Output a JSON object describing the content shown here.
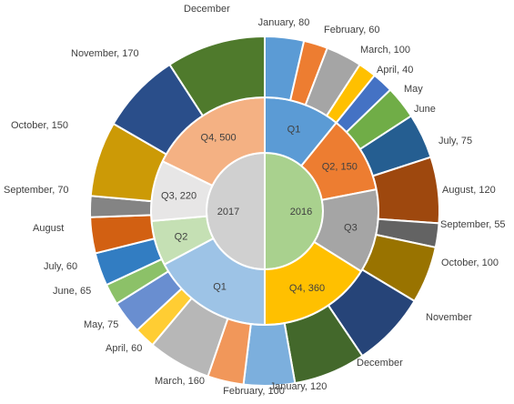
{
  "chart_data": {
    "type": "sunburst",
    "title": "",
    "rings": [
      {
        "name": "year",
        "slices": [
          {
            "label": "2016",
            "value": 1050,
            "color": "#a9d18e",
            "label_text": "2016",
            "a0": 0,
            "a1": 180
          },
          {
            "label": "2017",
            "value": 1050,
            "color": "#d0d0d0",
            "label_text": "2017",
            "a0": 180,
            "a1": 360
          }
        ]
      },
      {
        "name": "quarter",
        "slices": [
          {
            "label": "Q1",
            "value": 180,
            "color": "#5b9bd5",
            "label_text": "Q1",
            "a0": 0,
            "a1": 39
          },
          {
            "label": "Q2",
            "value": 150,
            "color": "#ed7d31",
            "label_text": "Q2, 150",
            "a0": 39,
            "a1": 79
          },
          {
            "label": "Q3",
            "value": 250,
            "color": "#a5a5a5",
            "label_text": "Q3",
            "a0": 79,
            "a1": 122
          },
          {
            "label": "Q4",
            "value": 360,
            "color": "#ffc000",
            "label_text": "Q4, 360",
            "a0": 122,
            "a1": 180
          },
          {
            "label": "Q1",
            "value": 380,
            "color": "#9dc3e6",
            "label_text": "Q1",
            "a0": 180,
            "a1": 242
          },
          {
            "label": "Q2",
            "value": 200,
            "color": "#c5e0b4",
            "label_text": "Q2",
            "a0": 242,
            "a1": 265
          },
          {
            "label": "Q3",
            "value": 220,
            "color": "#e7e6e6",
            "label_text": "Q3, 220",
            "a0": 265,
            "a1": 296
          },
          {
            "label": "Q4",
            "value": 500,
            "color": "#f4b183",
            "label_text": "Q4, 500",
            "a0": 296,
            "a1": 360
          }
        ]
      },
      {
        "name": "month",
        "slices": [
          {
            "label": "January",
            "value": 80,
            "color": "#5b9bd5",
            "label_text": "January, 80",
            "a0": 0,
            "a1": 13
          },
          {
            "label": "February",
            "value": 60,
            "color": "#ed7d31",
            "label_text": "February, 60",
            "a0": 13,
            "a1": 21
          },
          {
            "label": "March",
            "value": 100,
            "color": "#a5a5a5",
            "label_text": "March, 100",
            "a0": 21,
            "a1": 33
          },
          {
            "label": "April",
            "value": 40,
            "color": "#ffc000",
            "label_text": "April, 40",
            "a0": 33,
            "a1": 39
          },
          {
            "label": "May",
            "value": null,
            "color": "#4472c4",
            "label_text": "May",
            "a0": 39,
            "a1": 46
          },
          {
            "label": "June",
            "value": null,
            "color": "#70ad47",
            "label_text": "June",
            "a0": 46,
            "a1": 57
          },
          {
            "label": "July",
            "value": 75,
            "color": "#255e91",
            "label_text": "July, 75",
            "a0": 57,
            "a1": 72
          },
          {
            "label": "August",
            "value": 120,
            "color": "#9e480e",
            "label_text": "August, 120",
            "a0": 72,
            "a1": 94
          },
          {
            "label": "September",
            "value": 55,
            "color": "#636363",
            "label_text": "September, 55",
            "a0": 94,
            "a1": 102
          },
          {
            "label": "October",
            "value": 100,
            "color": "#997300",
            "label_text": "October, 100",
            "a0": 102,
            "a1": 121
          },
          {
            "label": "November",
            "value": null,
            "color": "#264478",
            "label_text": "November",
            "a0": 121,
            "a1": 146
          },
          {
            "label": "December",
            "value": null,
            "color": "#43682b",
            "label_text": "December",
            "a0": 146,
            "a1": 170
          },
          {
            "label": "January",
            "value": 120,
            "color": "#7cafdd",
            "label_text": "January, 120",
            "a0": 170,
            "a1": 187
          },
          {
            "label": "February",
            "value": 100,
            "color": "#f1975a",
            "label_text": "February, 100",
            "a0": 187,
            "a1": 199
          },
          {
            "label": "March",
            "value": 160,
            "color": "#b7b7b7",
            "label_text": "March, 160",
            "a0": 199,
            "a1": 220
          },
          {
            "label": "April",
            "value": 60,
            "color": "#ffcd33",
            "label_text": "April, 60",
            "a0": 220,
            "a1": 227
          },
          {
            "label": "May",
            "value": 75,
            "color": "#698ed0",
            "label_text": "May, 75",
            "a0": 227,
            "a1": 238
          },
          {
            "label": "June",
            "value": 65,
            "color": "#8cc168",
            "label_text": "June, 65",
            "a0": 238,
            "a1": 245
          },
          {
            "label": "July",
            "value": 60,
            "color": "#327dc2",
            "label_text": "July, 60",
            "a0": 245,
            "a1": 256
          },
          {
            "label": "August",
            "value": null,
            "color": "#d26012",
            "label_text": "August",
            "a0": 256,
            "a1": 268
          },
          {
            "label": "September",
            "value": 70,
            "color": "#848484",
            "label_text": "September, 70",
            "a0": 268,
            "a1": 275
          },
          {
            "label": "October",
            "value": 150,
            "color": "#cc9a06",
            "label_text": "October, 150",
            "a0": 275,
            "a1": 300
          },
          {
            "label": "November",
            "value": 170,
            "color": "#2a4e8a",
            "label_text": "November, 170",
            "a0": 300,
            "a1": 327
          },
          {
            "label": "December",
            "value": null,
            "color": "#4f7a2c",
            "label_text": "December",
            "a0": 327,
            "a1": 360
          }
        ]
      }
    ]
  }
}
